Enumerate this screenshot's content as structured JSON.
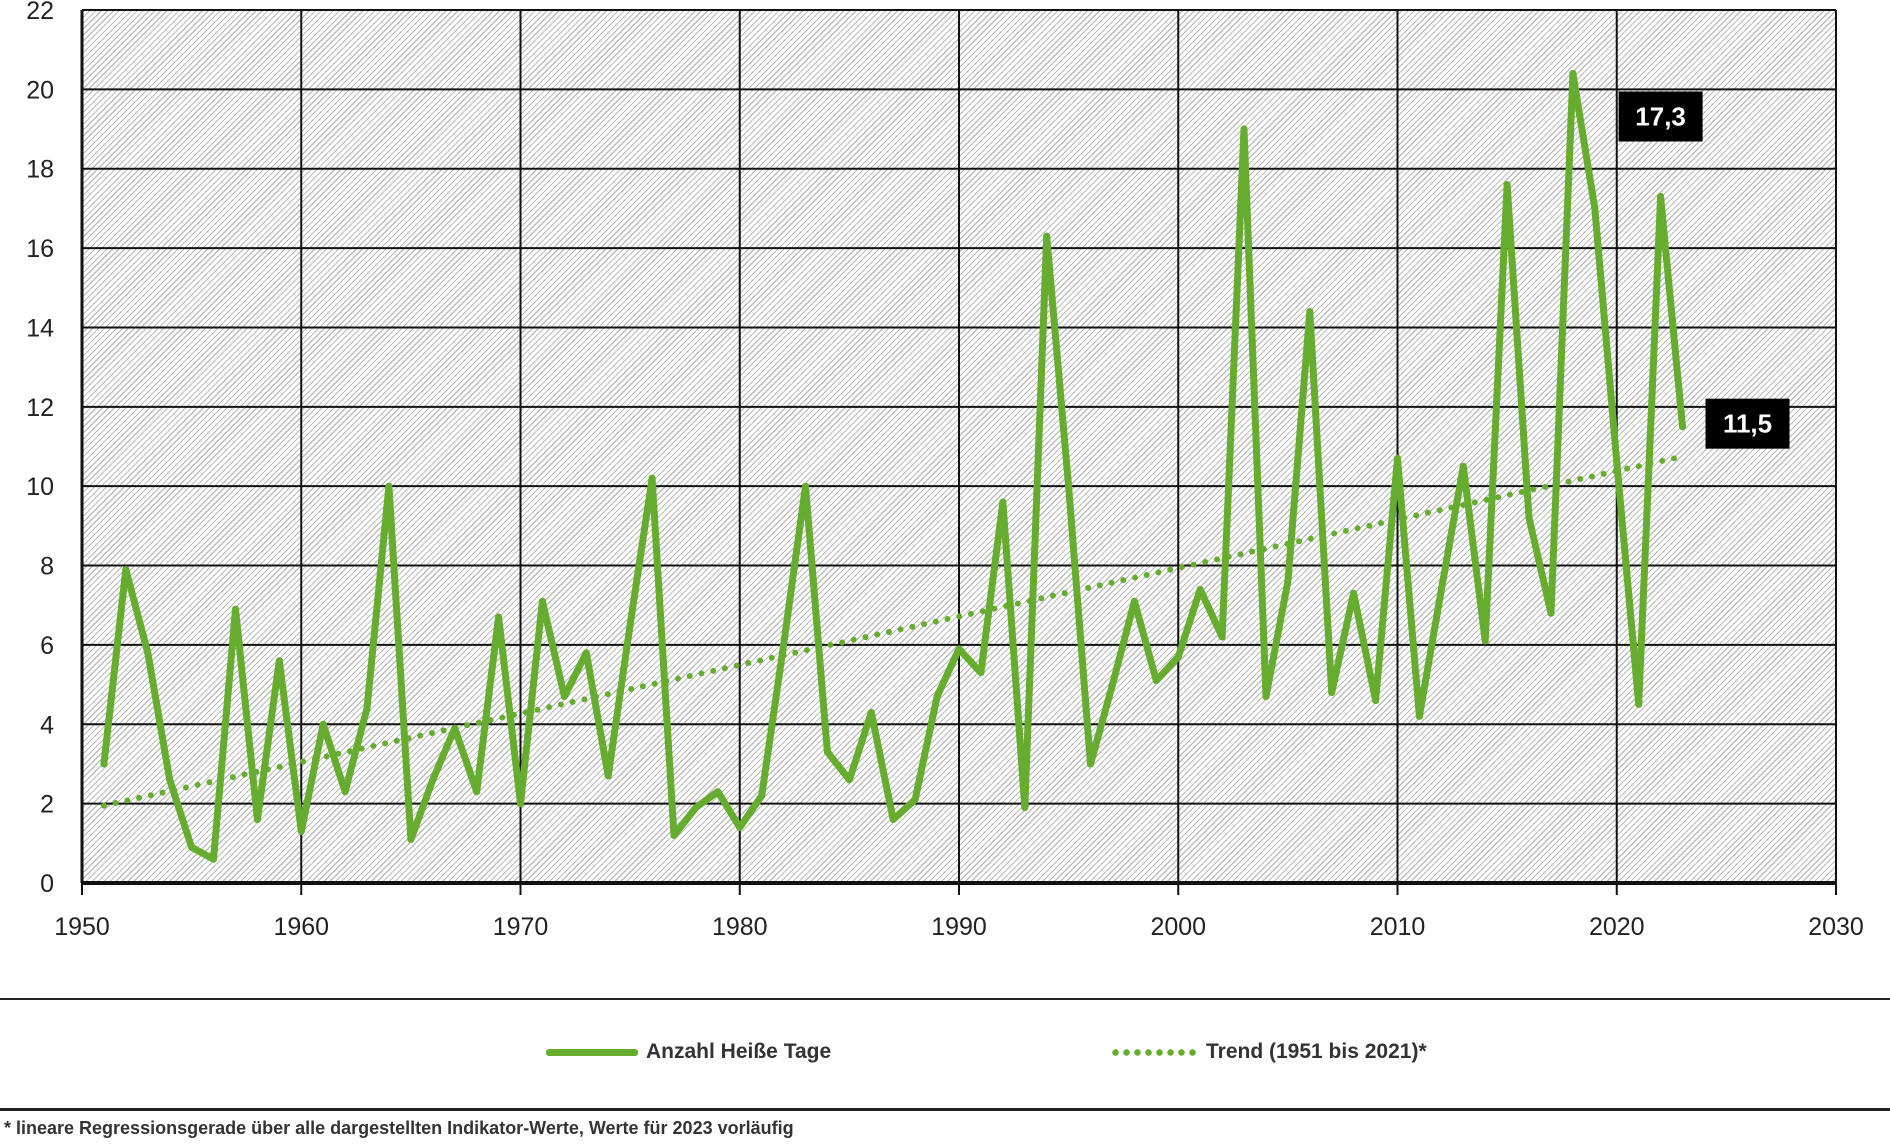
{
  "chart_data": {
    "type": "line",
    "title": "",
    "xlabel": "",
    "ylabel": "",
    "xlim": [
      1950,
      2030
    ],
    "ylim": [
      0,
      22
    ],
    "x_ticks": [
      "1950",
      "1960",
      "1970",
      "1980",
      "1990",
      "2000",
      "2010",
      "2020",
      "2030"
    ],
    "y_ticks": [
      "0",
      "2",
      "4",
      "6",
      "8",
      "10",
      "12",
      "14",
      "16",
      "18",
      "20",
      "22"
    ],
    "grid": true,
    "series": [
      {
        "name": "Anzahl Heiße Tage",
        "color": "#66ad2f",
        "style": "solid",
        "x": [
          1951,
          1952,
          1953,
          1954,
          1955,
          1956,
          1957,
          1958,
          1959,
          1960,
          1961,
          1962,
          1963,
          1964,
          1965,
          1966,
          1967,
          1968,
          1969,
          1970,
          1971,
          1972,
          1973,
          1974,
          1975,
          1976,
          1977,
          1978,
          1979,
          1980,
          1981,
          1982,
          1983,
          1984,
          1985,
          1986,
          1987,
          1988,
          1989,
          1990,
          1991,
          1992,
          1993,
          1994,
          1995,
          1996,
          1997,
          1998,
          1999,
          2000,
          2001,
          2002,
          2003,
          2004,
          2005,
          2006,
          2007,
          2008,
          2009,
          2010,
          2011,
          2012,
          2013,
          2014,
          2015,
          2016,
          2017,
          2018,
          2019,
          2020,
          2021,
          2022,
          2023
        ],
        "values": [
          3.0,
          7.9,
          5.8,
          2.6,
          0.9,
          0.6,
          6.9,
          1.6,
          5.6,
          1.3,
          4.0,
          2.3,
          4.4,
          10.0,
          1.1,
          2.6,
          3.9,
          2.3,
          6.7,
          2.0,
          7.1,
          4.7,
          5.8,
          2.7,
          6.5,
          10.2,
          1.2,
          1.9,
          2.3,
          1.4,
          2.2,
          6.0,
          10.0,
          3.3,
          2.6,
          4.3,
          1.6,
          2.1,
          4.7,
          5.9,
          5.3,
          9.6,
          1.9,
          16.3,
          10.0,
          3.0,
          5.0,
          7.1,
          5.1,
          5.7,
          7.4,
          6.2,
          19.0,
          4.7,
          7.6,
          14.4,
          4.8,
          7.3,
          4.6,
          10.7,
          4.2,
          7.4,
          10.5,
          6.1,
          17.6,
          9.2,
          6.8,
          20.4,
          17.0,
          10.6,
          4.5,
          17.3,
          11.5
        ]
      },
      {
        "name": "Trend (1951 bis 2021)*",
        "color": "#66ad2f",
        "style": "dotted",
        "x": [
          1951,
          2023
        ],
        "values": [
          1.95,
          10.75
        ]
      }
    ],
    "annotations": [
      {
        "x": 2022,
        "value": 17.3,
        "text": "17,3"
      },
      {
        "x": 2023,
        "value": 11.5,
        "text": "11,5"
      }
    ],
    "legend_position": "bottom",
    "footnote": "* lineare Regressionsgerade über alle dargestellten Indikator-Werte, Werte für 2023 vorläufig"
  }
}
